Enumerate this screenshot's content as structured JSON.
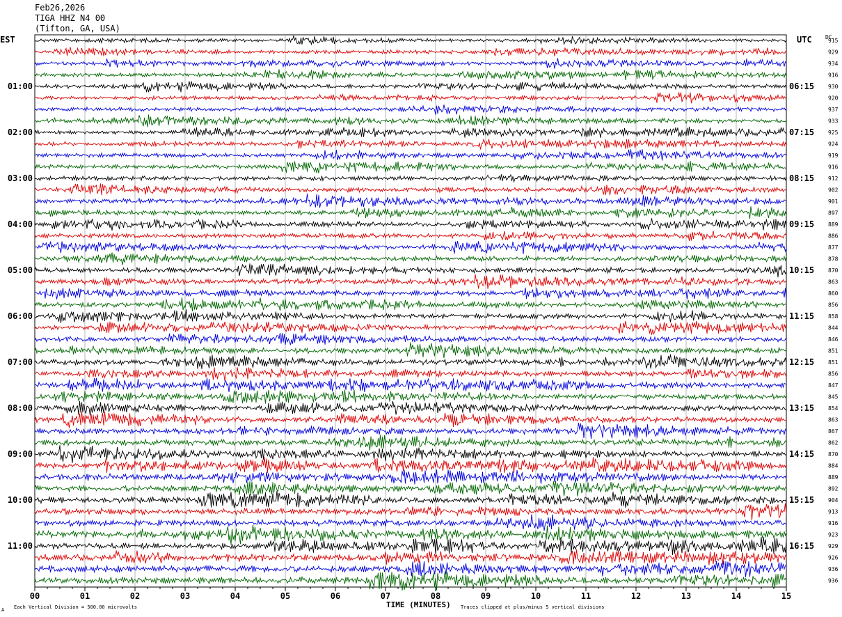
{
  "header": {
    "date": "Feb26,2026",
    "station": "TIGA HHZ N4 00",
    "location": "(Tifton, GA, USA)"
  },
  "left_timezone": "EST",
  "right_timezone": "UTC",
  "dc_label": "DC",
  "footer": {
    "scale_note": "Each Vertical Division =  500.00 microvolts",
    "clip_note": "Traces clipped at plus/minus 5 vertical divisions",
    "corner_mark": "A"
  },
  "chart_data": {
    "type": "line",
    "xlabel": "TIME (MINUTES)",
    "xlim": [
      0,
      15
    ],
    "x_ticks": [
      "00",
      "01",
      "02",
      "03",
      "04",
      "05",
      "06",
      "07",
      "08",
      "09",
      "10",
      "11",
      "12",
      "13",
      "14",
      "15"
    ],
    "left_hour_labels": [
      "01:00",
      "02:00",
      "03:00",
      "04:00",
      "05:00",
      "06:00",
      "07:00",
      "08:00",
      "09:00",
      "10:00",
      "11:00"
    ],
    "right_hour_labels": [
      "06:15",
      "07:15",
      "08:15",
      "09:15",
      "10:15",
      "11:15",
      "12:15",
      "13:15",
      "14:15",
      "15:15",
      "16:15"
    ],
    "trace_colors": [
      "#000000",
      "#dd0000",
      "#0000dd",
      "#006600"
    ],
    "dc_offsets": [
      915,
      929,
      934,
      916,
      930,
      920,
      937,
      933,
      925,
      924,
      919,
      916,
      912,
      902,
      901,
      897,
      889,
      886,
      877,
      878,
      870,
      863,
      860,
      856,
      858,
      844,
      846,
      851,
      851,
      856,
      847,
      845,
      854,
      863,
      867,
      862,
      870,
      884,
      889,
      892,
      904,
      913,
      916,
      923,
      929,
      926,
      936,
      936
    ],
    "grid": true
  }
}
